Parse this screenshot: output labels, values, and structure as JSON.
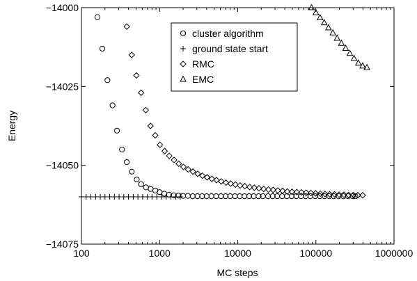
{
  "chart_data": {
    "type": "scatter",
    "xlabel": "MC steps",
    "ylabel": "Energy",
    "xscale": "log",
    "xlim": [
      100,
      1000000
    ],
    "ylim": [
      -14075,
      -14000
    ],
    "xticks": [
      100,
      1000,
      10000,
      100000,
      1000000
    ],
    "xtick_labels": [
      "100",
      "1000",
      "10000",
      "100000",
      "1000000"
    ],
    "yticks": [
      -14000,
      -14025,
      -14050,
      -14075
    ],
    "ytick_labels": [
      "−14000",
      "−14025",
      "−14050",
      "−14075"
    ],
    "grid": false,
    "legend_position": "top-center",
    "series": [
      {
        "name": "cluster algorithm",
        "marker": "circle",
        "x": [
          160,
          185,
          215,
          250,
          285,
          330,
          380,
          440,
          510,
          580,
          670,
          770,
          880,
          1000,
          1150,
          1320,
          1520,
          1750,
          2000,
          2300,
          2650,
          3050,
          3500,
          4000,
          4600,
          5300,
          6100,
          7000,
          8000,
          9200,
          10600,
          12200,
          14000,
          16000,
          18500,
          21000,
          24500,
          28000,
          32000,
          37000,
          42500,
          49000,
          56000,
          64500,
          74000,
          85000,
          98000,
          112000,
          129000,
          148000,
          170000,
          196000,
          225000,
          258000,
          297000,
          320000
        ],
        "y": [
          -14003,
          -14013,
          -14023,
          -14031,
          -14039,
          -14045,
          -14049,
          -14052,
          -14054.5,
          -14056,
          -14057,
          -14057.5,
          -14058,
          -14058.5,
          -14059,
          -14059.3,
          -14059.5,
          -14059.6,
          -14059.7,
          -14059.7,
          -14059.8,
          -14059.8,
          -14059.8,
          -14059.8,
          -14059.8,
          -14059.8,
          -14059.8,
          -14059.8,
          -14059.8,
          -14059.8,
          -14059.8,
          -14059.8,
          -14059.8,
          -14059.8,
          -14059.8,
          -14059.8,
          -14059.8,
          -14059.8,
          -14059.8,
          -14059.8,
          -14059.8,
          -14059.8,
          -14059.8,
          -14059.8,
          -14059.8,
          -14059.8,
          -14059.8,
          -14059.8,
          -14059.8,
          -14059.8,
          -14059.8,
          -14059.8,
          -14059.8,
          -14059.8,
          -14059.8,
          -14059.8
        ]
      },
      {
        "name": "ground state start",
        "marker": "plus",
        "x": [
          100,
          115,
          132,
          152,
          174,
          200,
          230,
          264,
          303,
          348,
          400,
          460,
          528,
          607,
          697,
          800,
          920,
          1056,
          1213,
          1393,
          1600,
          1838
        ],
        "y": [
          -14060,
          -14060,
          -14060,
          -14060,
          -14060,
          -14060,
          -14060,
          -14060,
          -14060,
          -14060,
          -14060,
          -14060,
          -14060,
          -14060,
          -14060,
          -14060,
          -14060,
          -14060,
          -14060,
          -14060,
          -14060,
          -14060
        ]
      },
      {
        "name": "RMC",
        "marker": "diamond",
        "x": [
          380,
          440,
          505,
          580,
          665,
          765,
          880,
          1010,
          1160,
          1330,
          1530,
          1760,
          2020,
          2320,
          2670,
          3070,
          3530,
          4050,
          4660,
          5350,
          6150,
          7070,
          8120,
          9330,
          10700,
          12300,
          14200,
          16300,
          18700,
          21500,
          24700,
          28400,
          32600,
          37500,
          43100,
          49500,
          56900,
          65300,
          75100,
          86300,
          99100,
          114000,
          131000,
          150000,
          173000,
          198000,
          228000,
          262000,
          301000,
          345000,
          397000
        ],
        "y": [
          -14006,
          -14015,
          -14021.5,
          -14027,
          -14032.5,
          -14037.5,
          -14040.5,
          -14043.5,
          -14045.5,
          -14047,
          -14048.3,
          -14049.5,
          -14050.5,
          -14051.3,
          -14052,
          -14052.7,
          -14053.3,
          -14053.8,
          -14054.3,
          -14054.7,
          -14055.1,
          -14055.5,
          -14055.8,
          -14056.1,
          -14056.4,
          -14056.6,
          -14056.9,
          -14057.1,
          -14057.3,
          -14057.5,
          -14057.7,
          -14057.8,
          -14058,
          -14058.1,
          -14058.3,
          -14058.4,
          -14058.5,
          -14058.6,
          -14058.7,
          -14058.8,
          -14058.9,
          -14059,
          -14059.1,
          -14059.2,
          -14059.2,
          -14059.3,
          -14059.3,
          -14059.4,
          -14059.4,
          -14059.5,
          -14059.5
        ]
      },
      {
        "name": "EMC",
        "marker": "triangle",
        "x": [
          88000,
          100000,
          113000,
          128000,
          145000,
          165000,
          187000,
          212000,
          240000,
          272000,
          308000,
          350000,
          397000,
          450000
        ],
        "y": [
          -14000,
          -14001.6,
          -14003.2,
          -14004.8,
          -14006.4,
          -14008,
          -14009.7,
          -14011.3,
          -14012.9,
          -14014.5,
          -14016.1,
          -14017.6,
          -14018.5,
          -14019
        ]
      }
    ]
  }
}
